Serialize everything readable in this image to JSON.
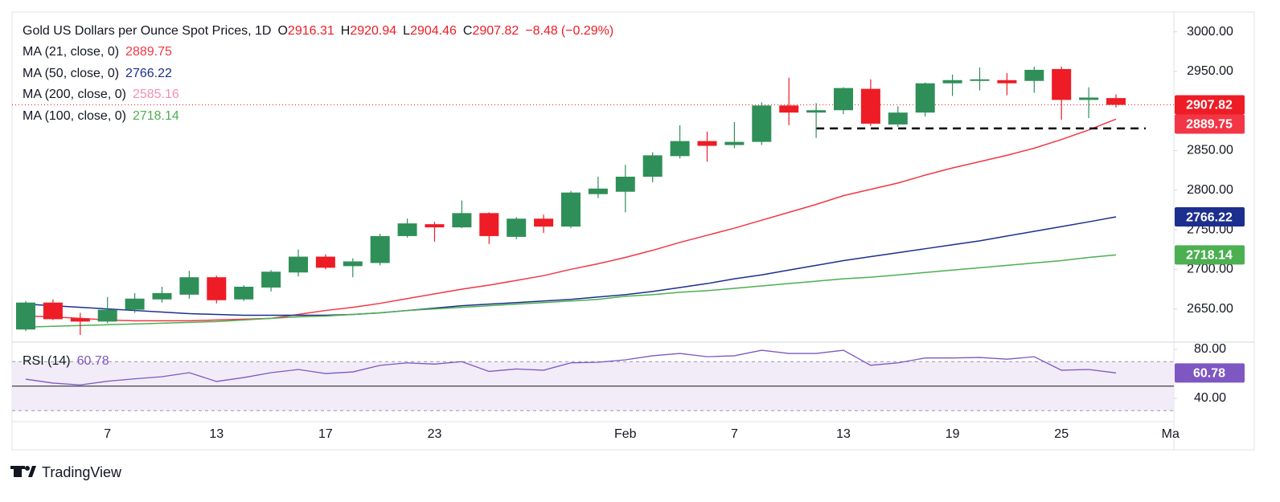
{
  "chart_data": [
    {
      "type": "candlestick",
      "title": "Gold US Dollars per Ounce Spot Prices, 1D",
      "header_stats": [
        {
          "name": "O",
          "value": 2916.31
        },
        {
          "name": "H",
          "value": 2920.94
        },
        {
          "name": "L",
          "value": 2904.46
        },
        {
          "name": "C",
          "value": 2907.82
        }
      ],
      "change": {
        "value": -8.48,
        "label": "−8.48"
      },
      "change_pct": {
        "value": -0.29,
        "label": "(−0.29%)"
      },
      "categories": [
        null,
        null,
        null,
        "7",
        null,
        null,
        null,
        "13",
        null,
        null,
        null,
        "17",
        null,
        null,
        null,
        "23",
        null,
        null,
        null,
        null,
        null,
        null,
        "Feb",
        null,
        null,
        null,
        "7",
        null,
        null,
        null,
        "13",
        null,
        null,
        null,
        "19",
        null,
        null,
        null,
        "25",
        null,
        null,
        null,
        "Ma"
      ],
      "open": [
        2624,
        2658,
        2638,
        2634,
        2649,
        2662,
        2668,
        2690,
        2662,
        2677,
        2696,
        2716,
        2704,
        2708,
        2742,
        2757,
        2753,
        2771,
        2741,
        2764,
        2754,
        2795,
        2798,
        2817,
        2843,
        2862,
        2857,
        2861,
        2907,
        2898,
        2901,
        2928,
        2883,
        2898,
        2935,
        2938,
        2939,
        2938,
        2953,
        2914,
        2916.31,
        null,
        null
      ],
      "high": [
        2660,
        2662,
        2645,
        2665,
        2670,
        2678,
        2698,
        2692,
        2680,
        2699,
        2725,
        2719,
        2714,
        2745,
        2764,
        2760,
        2787,
        2772,
        2766,
        2769,
        2799,
        2817,
        2832,
        2848,
        2882,
        2874,
        2886,
        2911,
        2942,
        2910,
        2930,
        2940,
        2906,
        2936,
        2946,
        2955,
        2948,
        2956,
        2956,
        2930,
        2920.94,
        null,
        null
      ],
      "low": [
        2622,
        2636,
        2617,
        2632,
        2645,
        2658,
        2663,
        2657,
        2660,
        2672,
        2691,
        2700,
        2690,
        2705,
        2740,
        2735,
        2752,
        2732,
        2738,
        2746,
        2752,
        2790,
        2772,
        2810,
        2840,
        2836,
        2853,
        2857,
        2882,
        2866,
        2896,
        2881,
        2880,
        2893,
        2919,
        2926,
        2920,
        2923,
        2889,
        2891,
        2904.46,
        null,
        null
      ],
      "close": [
        2658,
        2637,
        2634,
        2649,
        2663,
        2670,
        2690,
        2661,
        2678,
        2697,
        2716,
        2702,
        2710,
        2742,
        2758,
        2753,
        2771,
        2742,
        2764,
        2754,
        2797,
        2802,
        2817,
        2844,
        2862,
        2856,
        2861,
        2907,
        2898,
        2901,
        2929,
        2884,
        2898,
        2935,
        2939,
        2940,
        2935,
        2952,
        2914,
        2917,
        2907.82,
        null,
        null
      ],
      "up_color": "#2f8f58",
      "down_color": "#ee1c25",
      "series": [
        {
          "name": "MA (21, close, 0)",
          "color": "#f23645",
          "values": [
            2641,
            2640,
            2638,
            2636,
            2635,
            2635,
            2635,
            2636,
            2637,
            2638,
            2643,
            2648,
            2652,
            2657,
            2663,
            2669,
            2675,
            2680,
            2686,
            2692,
            2700,
            2707,
            2715,
            2724,
            2734,
            2743,
            2752,
            2762,
            2772,
            2782,
            2793,
            2801,
            2809,
            2819,
            2828,
            2836,
            2844,
            2853,
            2864,
            2876,
            2889.75,
            null,
            null
          ]
        },
        {
          "name": "MA (50, close, 0)",
          "color": "#1c2f8e",
          "values": [
            2656,
            2654,
            2652,
            2650,
            2648,
            2646,
            2644,
            2643,
            2642,
            2642,
            2642,
            2642,
            2643,
            2645,
            2648,
            2651,
            2654,
            2656,
            2658,
            2660,
            2662,
            2665,
            2668,
            2672,
            2677,
            2682,
            2688,
            2693,
            2699,
            2705,
            2711,
            2716,
            2721,
            2726,
            2731,
            2736,
            2742,
            2748,
            2754,
            2760,
            2766.22,
            null,
            null
          ]
        },
        {
          "name": "MA (200, close, 0)",
          "color": "#f48fb1",
          "last_value": 2585.16
        },
        {
          "name": "MA (100, close, 0)",
          "color": "#4caf50",
          "values": [
            2627,
            2628,
            2629,
            2630,
            2631,
            2632,
            2633,
            2634,
            2636,
            2638,
            2640,
            2641,
            2643,
            2645,
            2648,
            2650,
            2652,
            2654,
            2656,
            2658,
            2660,
            2662,
            2666,
            2668,
            2671,
            2673,
            2676,
            2679,
            2682,
            2685,
            2688,
            2690,
            2693,
            2696,
            2699,
            2702,
            2705,
            2708,
            2711,
            2715,
            2718.14,
            null,
            null
          ]
        }
      ],
      "ylim": [
        2609,
        3025
      ],
      "yticks": [
        {
          "value": 2650,
          "label": "2650.00"
        },
        {
          "value": 2700,
          "label": "2700.00"
        },
        {
          "value": 2750,
          "label": "2750.00"
        },
        {
          "value": 2800,
          "label": "2800.00"
        },
        {
          "value": 2850,
          "label": "2850.00"
        },
        {
          "value": 2900,
          "label": "2900.00"
        },
        {
          "value": 2950,
          "label": "2950.00"
        },
        {
          "value": 3000,
          "label": "3000.00"
        }
      ],
      "support": {
        "value": 2878,
        "start": 29,
        "color": "#000000"
      },
      "footer": "TradingView"
    },
    {
      "type": "line",
      "name": "RSI (14)",
      "color": "#7e57c2",
      "values": [
        55.7,
        52.5,
        51,
        54,
        56,
        57.7,
        61,
        53.8,
        57,
        61,
        63.6,
        60.3,
        61.6,
        67,
        69,
        68,
        70,
        62,
        64,
        63,
        69,
        69.5,
        71.5,
        74.8,
        76.7,
        74,
        74.8,
        79.3,
        76.7,
        76.7,
        79.3,
        67,
        69,
        73,
        73,
        73.4,
        72,
        74,
        63,
        63.6,
        60.78,
        null,
        null
      ],
      "ylim": [
        29.5,
        84.6
      ],
      "yticks": [
        {
          "value": 40,
          "label": "40.00"
        },
        {
          "value": 80,
          "label": "80.00"
        }
      ],
      "levels": [
        70,
        50,
        30
      ],
      "band_color": "#ede7f6"
    }
  ]
}
